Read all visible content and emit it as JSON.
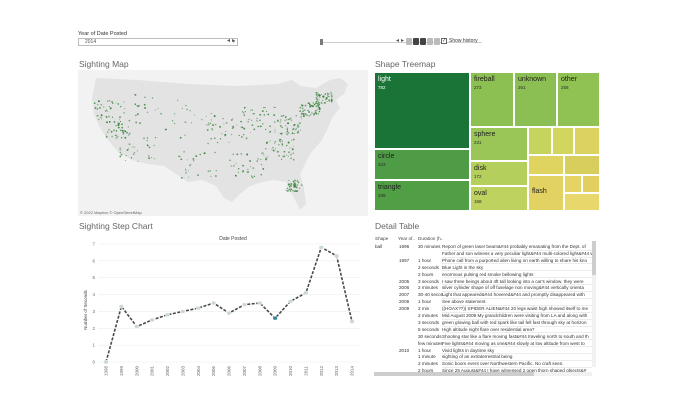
{
  "filter": {
    "label": "Year of Date Posted",
    "value": "2014",
    "history_label": "Show history"
  },
  "titles": {
    "map": "Sighting Map",
    "treemap": "Shape Treemap",
    "step": "Sighting Step Chart",
    "table": "Detail Table"
  },
  "map": {
    "attribution": "© 2022 Mapbox © OpenStreetMap",
    "fill_color": "#e3e3e3",
    "dot_color": "#2f7d32"
  },
  "treemap": {
    "cells": [
      {
        "name": "light",
        "value": "782",
        "color": "#1a7337",
        "dark": true
      },
      {
        "name": "fireball",
        "value": "273",
        "color": "#8dc052",
        "dark": false
      },
      {
        "name": "unknown",
        "value": "261",
        "color": "#8cbf53",
        "dark": false
      },
      {
        "name": "other",
        "value": "258",
        "color": "#90c253",
        "dark": false
      },
      {
        "name": "circle",
        "value": "343",
        "color": "#4e9c45",
        "dark": false
      },
      {
        "name": "sphere",
        "value": "231",
        "color": "#9ac657",
        "dark": false
      },
      {
        "name": "triangle",
        "value": "339",
        "color": "#519f45",
        "dark": false
      },
      {
        "name": "disk",
        "value": "172",
        "color": "#b4cf5c",
        "dark": false
      },
      {
        "name": "oval",
        "value": "158",
        "color": "#bdd25f",
        "dark": false
      },
      {
        "name": "flash",
        "value": "",
        "color": "#e2d262",
        "dark": false
      }
    ],
    "small_colors": [
      "#c6d35d",
      "#d3d65e",
      "#dcd25f",
      "#e0d460",
      "#d7ce5e",
      "#e5d464",
      "#e2cf5f",
      "#e8d76a"
    ]
  },
  "chart_data": {
    "type": "line",
    "title": "Date Posted",
    "xlabel": "",
    "ylabel": "Number of Seconds",
    "x": [
      "1998",
      "1999",
      "2000",
      "2001",
      "2002",
      "2003",
      "2004",
      "2005",
      "2006",
      "2007",
      "2008",
      "2009",
      "2010",
      "2011",
      "2012",
      "2013",
      "2014"
    ],
    "values": [
      0,
      3.3,
      2.1,
      2.5,
      2.8,
      3.0,
      3.2,
      3.5,
      2.9,
      3.4,
      3.5,
      2.6,
      3.6,
      4.1,
      6.8,
      6.3,
      2.4
    ],
    "yticks": [
      "0",
      "1",
      "2",
      "3",
      "4",
      "5",
      "6",
      "7"
    ],
    "ylim": [
      0,
      7
    ],
    "line_color": "#4a4a4a",
    "marker_color": "#c9d8d0",
    "highlight_color": "#3b7f9a"
  },
  "detail_table": {
    "headers": [
      "Shape",
      "Year of..",
      "Duration (h..",
      ""
    ],
    "rows": [
      {
        "shape": "ball",
        "year": "1996",
        "duration": "30 minutes",
        "summary": "Report of green laser beam&#44 probably emanating from the Dept. of"
      },
      {
        "shape": "",
        "year": "",
        "duration": "",
        "summary": "Father and son witness a very peculiar light&#44 multi-colored light&#44 w"
      },
      {
        "shape": "",
        "year": "1997",
        "duration": "1 hour",
        "summary": "Phone call from a purported alien living on earth willing to share his kno"
      },
      {
        "shape": "",
        "year": "",
        "duration": "2 seconds",
        "summary": "Blue Light in the sky"
      },
      {
        "shape": "",
        "year": "",
        "duration": "2 hours",
        "summary": "enormous pulsing red smoke bellowing lights"
      },
      {
        "shape": "",
        "year": "2005",
        "duration": "3 seconds",
        "summary": "I saw three beings about 4ft tall looking into a car's window. they were"
      },
      {
        "shape": "",
        "year": "2006",
        "duration": "2 minutes",
        "summary": "silver cylinder shape of off fuselage non moving&#44 vertically orienta"
      },
      {
        "shape": "",
        "year": "2007",
        "duration": "30-40 secon..",
        "summary": "Light that appeared&#44 hovered&#44 and promptly disappeared with"
      },
      {
        "shape": "",
        "year": "2008",
        "duration": "1 hour",
        "summary": "See above statement."
      },
      {
        "shape": "",
        "year": "2009",
        "duration": "2 min",
        "summary": "((HOAX??)) SPIDER ALIEN&#44 20 legs waist high showed itself to me"
      },
      {
        "shape": "",
        "year": "",
        "duration": "2 minutes",
        "summary": "Mid August 2009 My grandchildren were visiting from LA and along with"
      },
      {
        "shape": "",
        "year": "",
        "duration": "3 seconds",
        "summary": "green glowing ball with red spark like tail fell fast through sky at horizon"
      },
      {
        "shape": "",
        "year": "",
        "duration": "5 seconds",
        "summary": "High altitude night flare over residential area?"
      },
      {
        "shape": "",
        "year": "",
        "duration": "30 seconds",
        "summary": "Shooting star like a flare moving fast&#44 traveling north to south and th"
      },
      {
        "shape": "",
        "year": "",
        "duration": "few minutes",
        "summary": "Five lights&#44 moving as one&#44 slowly at low altitude from west to"
      },
      {
        "shape": "",
        "year": "2010",
        "duration": "1 hour",
        "summary": "Vivid lights in daytime sky"
      },
      {
        "shape": "",
        "year": "",
        "duration": "1 minute",
        "summary": "sighting of an extraterrestrial being"
      },
      {
        "shape": "",
        "year": "",
        "duration": "2 minutes",
        "summary": "Sonic boom event over Northwestern Pacific. No craft seen."
      },
      {
        "shape": "",
        "year": "",
        "duration": "2 hours",
        "summary": "Since 25 August&#44 I have witnessed 2 open thorn shaped objects&#"
      }
    ]
  }
}
